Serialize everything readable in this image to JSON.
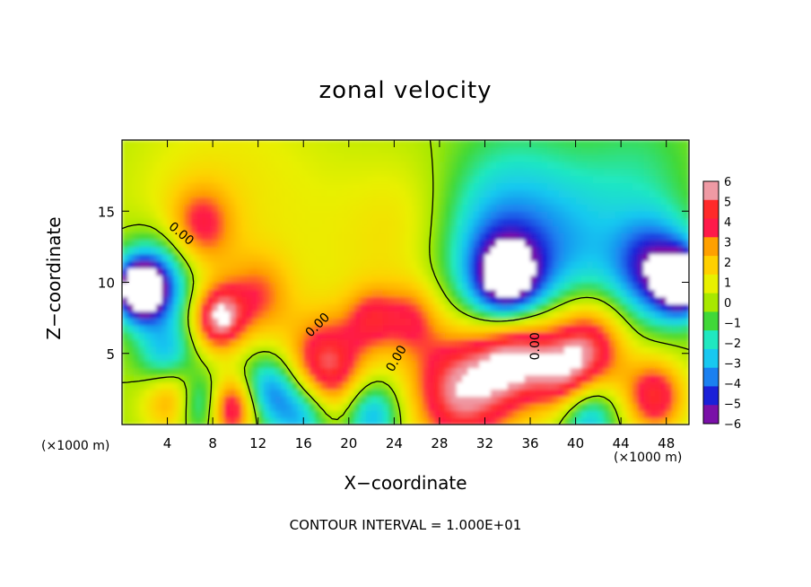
{
  "chart_data": {
    "type": "heatmap",
    "title": "zonal velocity",
    "xlabel": "X−coordinate",
    "ylabel": "Z−coordinate",
    "x_unit_left": "(×1000 m)",
    "x_unit_right": "(×1000 m)",
    "xlim": [
      0,
      50
    ],
    "ylim": [
      0,
      20
    ],
    "x_ticks": [
      4,
      8,
      12,
      16,
      20,
      24,
      28,
      32,
      36,
      40,
      44,
      48
    ],
    "y_ticks": [
      5,
      10,
      15
    ],
    "colorbar": {
      "ticks": [
        "6",
        "5",
        "4",
        "3",
        "2",
        "1",
        "0",
        "−1",
        "−2",
        "−3",
        "−4",
        "−5",
        "−6"
      ],
      "range": [
        -6,
        6
      ],
      "colors": [
        "#ef9aa4",
        "#ff2a2a",
        "#ff1a4a",
        "#ffa000",
        "#ffd000",
        "#e8f000",
        "#a8e800",
        "#40d838",
        "#20e8c0",
        "#18c8f0",
        "#1a80f0",
        "#1a20d8",
        "#7a10a8"
      ]
    },
    "contour_labels": [
      "0.00",
      "0.00",
      "0.00",
      "0.00"
    ],
    "contour_note": "CONTOUR INTERVAL = 1.000E+01",
    "blobs": [
      {
        "x": 3.5,
        "z": 14.5,
        "r": 6,
        "v": 0.5
      },
      {
        "x": 10,
        "z": 17,
        "r": 8,
        "v": 1.2
      },
      {
        "x": 7,
        "z": 14,
        "r": 2.8,
        "v": 3.2
      },
      {
        "x": 12,
        "z": 9,
        "r": 3,
        "v": 3
      },
      {
        "x": 8.5,
        "z": 7.5,
        "r": 2.2,
        "v": 6
      },
      {
        "x": 3,
        "z": 10,
        "r": 3.2,
        "v": -5
      },
      {
        "x": 1.5,
        "z": 9.5,
        "r": 2,
        "v": -7
      },
      {
        "x": 4,
        "z": 4.5,
        "r": 2.5,
        "v": -4
      },
      {
        "x": 4.5,
        "z": 2.2,
        "r": 2.6,
        "v": 4.5
      },
      {
        "x": 7,
        "z": 1.5,
        "r": 2.2,
        "v": -4.5
      },
      {
        "x": 9.5,
        "z": 1.2,
        "r": 2.2,
        "v": 6
      },
      {
        "x": 13,
        "z": 2.5,
        "r": 2.5,
        "v": -4
      },
      {
        "x": 18,
        "z": 4,
        "r": 3.5,
        "v": 5.5
      },
      {
        "x": 16,
        "z": 0.8,
        "r": 2.5,
        "v": -4
      },
      {
        "x": 22,
        "z": 0.8,
        "r": 2.5,
        "v": -4
      },
      {
        "x": 22,
        "z": 7.5,
        "r": 2.2,
        "v": 3
      },
      {
        "x": 25.5,
        "z": 7.5,
        "r": 2.5,
        "v": 3
      },
      {
        "x": 30,
        "z": 2.5,
        "r": 4.5,
        "v": 6
      },
      {
        "x": 35,
        "z": 5,
        "r": 3.5,
        "v": 6
      },
      {
        "x": 28,
        "z": 9,
        "r": 8,
        "v": 0.6
      },
      {
        "x": 20,
        "z": 12,
        "r": 7,
        "v": 0.7
      },
      {
        "x": 34,
        "z": 10,
        "r": 3,
        "v": -6
      },
      {
        "x": 32,
        "z": 12,
        "r": 6,
        "v": -3.5
      },
      {
        "x": 40,
        "z": 12,
        "r": 6,
        "v": -2.5
      },
      {
        "x": 35,
        "z": 17,
        "r": 6,
        "v": -1
      },
      {
        "x": 46,
        "z": 18,
        "r": 5,
        "v": -1.2
      },
      {
        "x": 47,
        "z": 11,
        "r": 3.5,
        "v": -5
      },
      {
        "x": 49.5,
        "z": 10,
        "r": 2.2,
        "v": -7
      },
      {
        "x": 41,
        "z": 5.5,
        "r": 3.5,
        "v": 6
      },
      {
        "x": 39,
        "z": 3,
        "r": 2.5,
        "v": 3
      },
      {
        "x": 41,
        "z": 0.8,
        "r": 2.5,
        "v": -4
      },
      {
        "x": 47,
        "z": 2,
        "r": 2.6,
        "v": 5
      },
      {
        "x": 26,
        "z": 14,
        "r": 5,
        "v": 1.3
      }
    ]
  }
}
